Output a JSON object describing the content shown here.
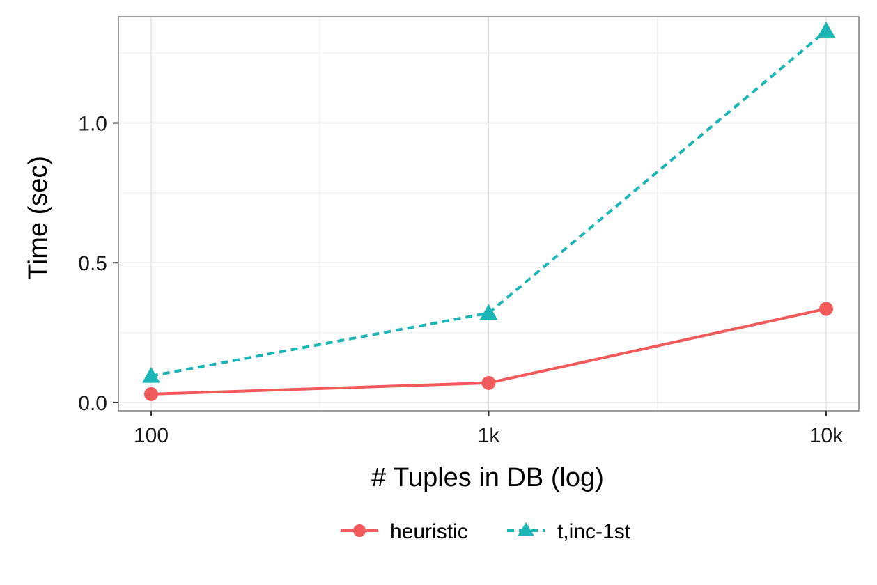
{
  "chart_data": {
    "type": "line",
    "title": "",
    "xlabel": "# Tuples in DB (log)",
    "ylabel": "Time (sec)",
    "x_scale": "log",
    "x": [
      100,
      1000,
      10000
    ],
    "x_tick_labels": [
      "100",
      "1k",
      "10k"
    ],
    "y_ticks": [
      0.0,
      0.5,
      1.0
    ],
    "y_tick_labels": [
      "0.0",
      "0.5",
      "1.0"
    ],
    "ylim": [
      -0.03,
      1.38
    ],
    "grid": true,
    "legend_position": "bottom",
    "series": [
      {
        "name": "heuristic",
        "values": [
          0.03,
          0.07,
          0.335
        ],
        "color": "#F05A5A",
        "marker": "circle",
        "line": "solid"
      },
      {
        "name": "t,inc-1st",
        "values": [
          0.095,
          0.32,
          1.33
        ],
        "color": "#1BB5B5",
        "marker": "triangle",
        "line": "dashed"
      }
    ]
  }
}
